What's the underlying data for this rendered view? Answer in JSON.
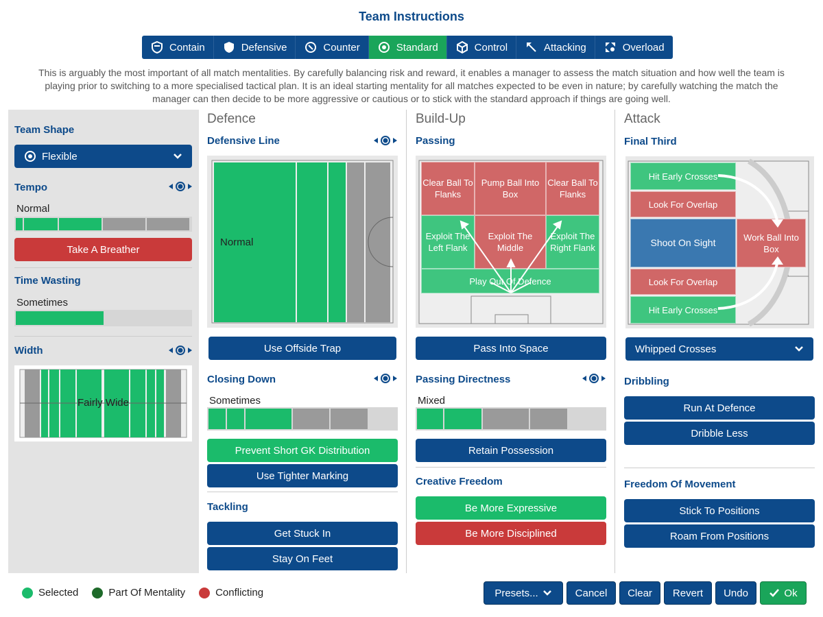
{
  "title": "Team Instructions",
  "tabs": [
    "Contain",
    "Defensive",
    "Counter",
    "Standard",
    "Control",
    "Attacking",
    "Overload"
  ],
  "active_tab": "Standard",
  "description": "This is arguably the most important of all match mentalities. By carefully balancing risk and reward, it enables a manager to assess the match situation and how well the team is playing prior to switching to a more specialised tactical plan. It is an ideal starting mentality for all matches expected to be even in nature; by carefully watching the match the manager can then decide to be more aggressive or cautious or to stick with the standard approach if things are going well.",
  "left": {
    "team_shape_label": "Team Shape",
    "team_shape_value": "Flexible",
    "tempo_label": "Tempo",
    "tempo_value": "Normal",
    "tempo_button": "Take A Breather",
    "time_wasting_label": "Time Wasting",
    "time_wasting_value": "Sometimes",
    "width_label": "Width",
    "width_value": "Fairly Wide"
  },
  "defence": {
    "heading": "Defence",
    "line_label": "Defensive Line",
    "line_value": "Normal",
    "offside_button": "Use Offside Trap",
    "closing_label": "Closing Down",
    "closing_value": "Sometimes",
    "gk_button": "Prevent Short GK Distribution",
    "marking_button": "Use Tighter Marking",
    "tackling_label": "Tackling",
    "tackle_btn1": "Get Stuck In",
    "tackle_btn2": "Stay On Feet"
  },
  "buildup": {
    "heading": "Build-Up",
    "passing_label": "Passing",
    "zones": {
      "clear_left": "Clear Ball To Flanks",
      "pump": "Pump Ball Into Box",
      "clear_right": "Clear Ball To Flanks",
      "exploit_left": "Exploit The Left Flank",
      "exploit_middle": "Exploit The Middle",
      "exploit_right": "Exploit The Right Flank",
      "play_out": "Play Out Of Defence"
    },
    "space_button": "Pass Into Space",
    "directness_label": "Passing Directness",
    "directness_value": "Mixed",
    "retain_button": "Retain Possession",
    "creative_label": "Creative Freedom",
    "expressive_button": "Be More Expressive",
    "disciplined_button": "Be More Disciplined"
  },
  "attack": {
    "heading": "Attack",
    "final_third_label": "Final Third",
    "zones": {
      "hit_early_top": "Hit Early Crosses",
      "overlap_top": "Look For Overlap",
      "shoot": "Shoot On Sight",
      "work_ball": "Work Ball Into Box",
      "overlap_bottom": "Look For Overlap",
      "hit_early_bottom": "Hit Early Crosses"
    },
    "crosses_value": "Whipped Crosses",
    "dribbling_label": "Dribbling",
    "run_button": "Run At Defence",
    "dribble_button": "Dribble Less",
    "freedom_label": "Freedom Of Movement",
    "stick_button": "Stick To Positions",
    "roam_button": "Roam From Positions"
  },
  "legend": {
    "selected": "Selected",
    "part": "Part Of Mentality",
    "conflicting": "Conflicting"
  },
  "footer": {
    "presets": "Presets...",
    "cancel": "Cancel",
    "clear": "Clear",
    "revert": "Revert",
    "undo": "Undo",
    "ok": "Ok"
  },
  "colors": {
    "primary": "#0d4a8a",
    "selected": "#1bbb6b",
    "part_of_mentality": "#1e6a2a",
    "conflicting": "#c93a3a"
  }
}
